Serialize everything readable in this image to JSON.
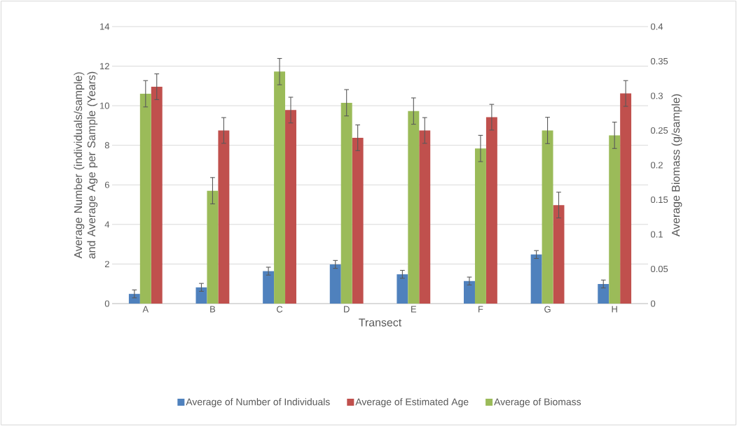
{
  "chart_data": {
    "type": "bar",
    "xlabel": "Transect",
    "ylabel": "Average Number (individuals/sample) and Average Age per Sample (Years)",
    "y2label": "Average Biomass (g/sample)",
    "categories": [
      "A",
      "B",
      "C",
      "D",
      "E",
      "F",
      "G",
      "H"
    ],
    "series": [
      {
        "name": "Average of Number of Individuals",
        "color": "#4f81bd",
        "values": [
          0.49,
          0.82,
          1.64,
          1.98,
          1.48,
          1.14,
          2.48,
          0.99
        ],
        "errors": [
          0.2,
          0.2,
          0.2,
          0.2,
          0.2,
          0.2,
          0.2,
          0.2
        ]
      },
      {
        "name": "Average of Estimated Age",
        "color": "#c0504d",
        "values": [
          10.96,
          8.75,
          9.78,
          8.38,
          8.75,
          9.42,
          4.98,
          10.62
        ],
        "errors": [
          0.65,
          0.65,
          0.65,
          0.65,
          0.65,
          0.65,
          0.65,
          0.65
        ]
      },
      {
        "name": "Average of Biomass",
        "color": "#9bbb59",
        "axis": "y2",
        "values": [
          0.303,
          0.163,
          0.335,
          0.29,
          0.278,
          0.224,
          0.25,
          0.243
        ],
        "errors": [
          0.019,
          0.019,
          0.019,
          0.019,
          0.019,
          0.019,
          0.019,
          0.019
        ]
      }
    ],
    "ylim": [
      0,
      14
    ],
    "yticks": [
      0,
      2,
      4,
      6,
      8,
      10,
      12,
      14
    ],
    "y2lim": [
      0,
      0.4
    ],
    "y2ticks": [
      0,
      0.05,
      0.1,
      0.15,
      0.2,
      0.25,
      0.3,
      0.35,
      0.4
    ],
    "grid": "y",
    "legend": "bottom"
  }
}
